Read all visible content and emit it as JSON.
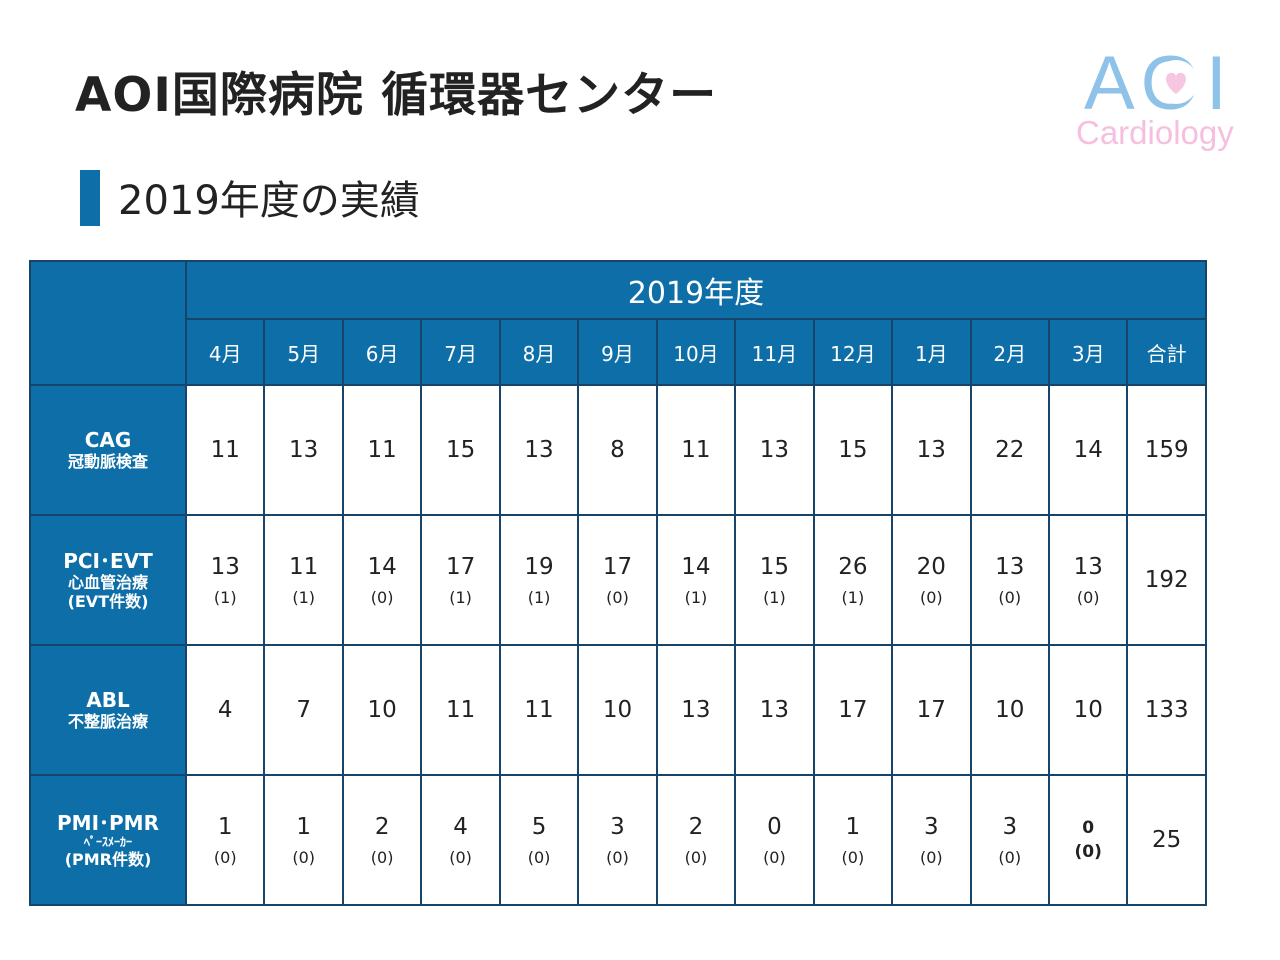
{
  "header": {
    "title": "AOI国際病院 循環器センター"
  },
  "logo": {
    "word": "AOI",
    "subtitle": "Cardiology",
    "word_color": "#8ec2e8",
    "heart_color": "#f7c6e0"
  },
  "section": {
    "title": "2019年度の実績"
  },
  "table": {
    "year_header": "2019年度",
    "columns": [
      "4月",
      "5月",
      "6月",
      "7月",
      "8月",
      "9月",
      "10月",
      "11月",
      "12月",
      "1月",
      "2月",
      "3月",
      "合計"
    ],
    "rows": [
      {
        "label": "CAG",
        "sublabel": "冠動脈検査",
        "cells": [
          {
            "value": "11"
          },
          {
            "value": "13"
          },
          {
            "value": "11"
          },
          {
            "value": "15"
          },
          {
            "value": "13"
          },
          {
            "value": "8"
          },
          {
            "value": "11"
          },
          {
            "value": "13"
          },
          {
            "value": "15"
          },
          {
            "value": "13"
          },
          {
            "value": "22"
          },
          {
            "value": "14"
          },
          {
            "value": "159"
          }
        ]
      },
      {
        "label": "PCI･EVT",
        "sublabel": "心血管治療",
        "note": "(EVT件数)",
        "cells": [
          {
            "value": "13",
            "sub": "(1)"
          },
          {
            "value": "11",
            "sub": "(1)"
          },
          {
            "value": "14",
            "sub": "(0)"
          },
          {
            "value": "17",
            "sub": "(1)"
          },
          {
            "value": "19",
            "sub": "(1)"
          },
          {
            "value": "17",
            "sub": "(0)"
          },
          {
            "value": "14",
            "sub": "(1)"
          },
          {
            "value": "15",
            "sub": "(1)"
          },
          {
            "value": "26",
            "sub": "(1)"
          },
          {
            "value": "20",
            "sub": "(0)"
          },
          {
            "value": "13",
            "sub": "(0)"
          },
          {
            "value": "13",
            "sub": "(0)"
          },
          {
            "value": "192"
          }
        ]
      },
      {
        "label": "ABL",
        "sublabel": "不整脈治療",
        "cells": [
          {
            "value": "4"
          },
          {
            "value": "7"
          },
          {
            "value": "10"
          },
          {
            "value": "11"
          },
          {
            "value": "11"
          },
          {
            "value": "10"
          },
          {
            "value": "13"
          },
          {
            "value": "13"
          },
          {
            "value": "17"
          },
          {
            "value": "17"
          },
          {
            "value": "10"
          },
          {
            "value": "10"
          },
          {
            "value": "133"
          }
        ]
      },
      {
        "label": "PMI･PMR",
        "sublabel": "ﾍﾟｰｽﾒｰｶｰ",
        "note": "(PMR件数)",
        "cells": [
          {
            "value": "1",
            "sub": "(0)"
          },
          {
            "value": "1",
            "sub": "(0)"
          },
          {
            "value": "2",
            "sub": "(0)"
          },
          {
            "value": "4",
            "sub": "(0)"
          },
          {
            "value": "5",
            "sub": "(0)"
          },
          {
            "value": "3",
            "sub": "(0)"
          },
          {
            "value": "2",
            "sub": "(0)"
          },
          {
            "value": "0",
            "sub": "(0)"
          },
          {
            "value": "1",
            "sub": "(0)"
          },
          {
            "value": "3",
            "sub": "(0)"
          },
          {
            "value": "3",
            "sub": "(0)"
          },
          {
            "value": "0",
            "sub": "(0)",
            "bold": true
          },
          {
            "value": "25"
          }
        ]
      }
    ]
  }
}
